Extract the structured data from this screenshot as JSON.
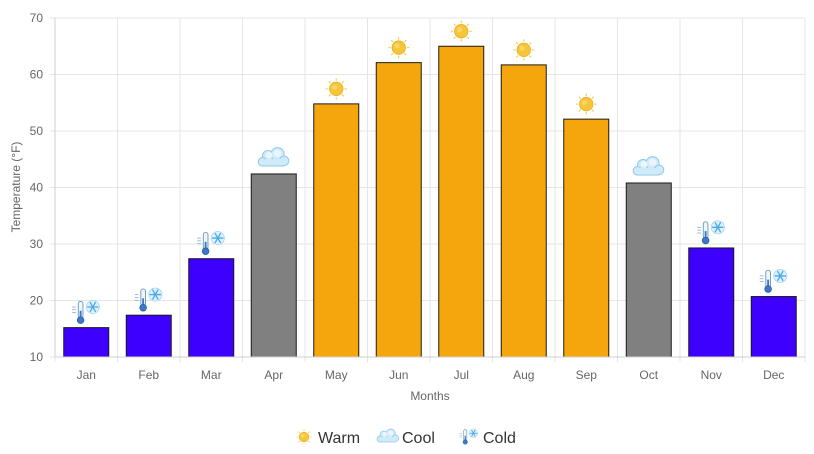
{
  "chart_data": {
    "type": "bar",
    "xlabel": "Months",
    "ylabel": "Temperature (°F)",
    "ylim": [
      10,
      70
    ],
    "yticks": [
      10,
      20,
      30,
      40,
      50,
      60,
      70
    ],
    "grid": true,
    "legend_position": "bottom",
    "categories": [
      "Jan",
      "Feb",
      "Mar",
      "Apr",
      "May",
      "Jun",
      "Jul",
      "Aug",
      "Sep",
      "Oct",
      "Nov",
      "Dec"
    ],
    "values": [
      15.2,
      17.4,
      27.4,
      42.4,
      54.8,
      62.1,
      65.0,
      61.7,
      52.1,
      40.8,
      29.3,
      20.7
    ],
    "categories_class": [
      "cold",
      "cold",
      "cold",
      "cool",
      "warm",
      "warm",
      "warm",
      "warm",
      "warm",
      "cool",
      "cold",
      "cold"
    ],
    "classes": {
      "warm": {
        "label": "Warm",
        "color": "#f4a60c",
        "icon": "sun-icon"
      },
      "cool": {
        "label": "Cool",
        "color": "#808080",
        "icon": "cloud-icon"
      },
      "cold": {
        "label": "Cold",
        "color": "#3d00ff",
        "icon": "thermometer-snowflake-icon"
      }
    },
    "legend": [
      {
        "label": "Warm",
        "icon": "sun-icon"
      },
      {
        "label": "Cool",
        "icon": "cloud-icon"
      },
      {
        "label": "Cold",
        "icon": "thermometer-snowflake-icon"
      }
    ]
  }
}
